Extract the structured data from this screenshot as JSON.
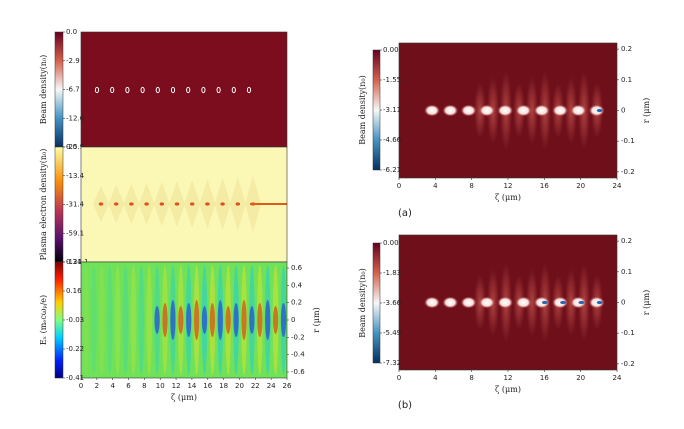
{
  "chart_data": [
    {
      "type": "heatmap",
      "colormap": "RdBu",
      "colorbar_label": "Beam density(n₀)",
      "cticks": [
        {
          "value": 0,
          "label": "0.0"
        },
        -2.9,
        -6.7,
        -12.6,
        -25.9
      ]
    },
    {
      "type": "heatmap",
      "colormap": "heat",
      "colorbar_label": "Plasma electron density(n₀)",
      "cticks": [
        {
          "value": 0,
          "label": "0.0"
        },
        -13.4,
        -31.4,
        -59.1,
        -121.1
      ]
    },
    {
      "type": "heatmap",
      "colormap": "jet",
      "colorbar_label": "Eₓ (mₑcωₚ/e)",
      "cticks": [
        0.34,
        0.16,
        -0.03,
        -0.22,
        -0.41
      ],
      "xlabel": "ζ (μm)",
      "xlim": [
        0,
        26
      ],
      "xticks": [
        0,
        2,
        4,
        6,
        8,
        10,
        12,
        14,
        16,
        18,
        20,
        22,
        24,
        26
      ],
      "ylabel": "r (μm)",
      "ylim": [
        -0.67,
        0.67
      ],
      "yticks": [
        0.6,
        0.4,
        0.2,
        0,
        -0.2,
        -0.4,
        -0.6
      ]
    },
    {
      "type": "heatmap",
      "colormap": "RdBu",
      "colorbar_label": "Beam density(n₀)",
      "cticks": [
        {
          "value": 0,
          "label": "0.00"
        },
        -1.55,
        -3.11,
        -4.66,
        -6.21
      ],
      "xlabel": "ζ (μm)",
      "xlim": [
        0,
        24
      ],
      "xticks": [
        0,
        4,
        8,
        12,
        16,
        20,
        24
      ],
      "ylabel": "r (μm)",
      "ylim": [
        -0.22,
        0.22
      ],
      "yticks": [
        0.2,
        0.1,
        0,
        -0.1,
        -0.2
      ],
      "caption": "(a)"
    },
    {
      "type": "heatmap",
      "colormap": "RdBu",
      "colorbar_label": "Beam density(n₀)",
      "cticks": [
        {
          "value": 0,
          "label": "0.00"
        },
        -1.83,
        -3.66,
        -5.49,
        -7.32
      ],
      "xlabel": "ζ (μm)",
      "xlim": [
        0,
        24
      ],
      "xticks": [
        0,
        4,
        8,
        12,
        16,
        20,
        24
      ],
      "ylabel": "r (μm)",
      "ylim": [
        -0.22,
        0.22
      ],
      "yticks": [
        0.2,
        0.1,
        0,
        -0.1,
        -0.2
      ],
      "caption": "(b)"
    }
  ]
}
